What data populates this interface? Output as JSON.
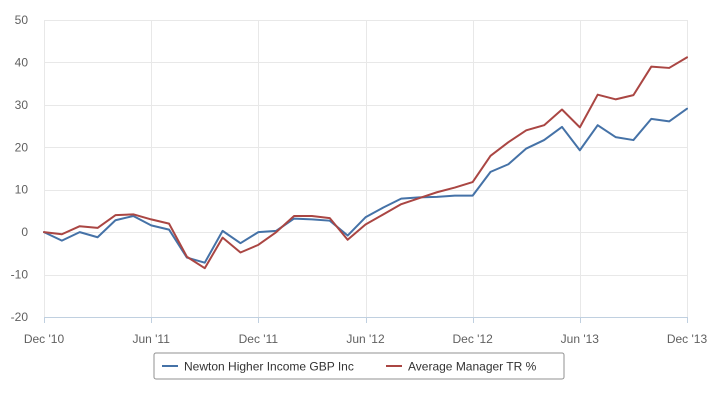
{
  "chart_data": {
    "type": "line",
    "title": "",
    "xlabel": "",
    "ylabel": "",
    "ylim": [
      -20,
      50
    ],
    "yticks": [
      -20,
      -10,
      0,
      10,
      20,
      30,
      40,
      50
    ],
    "xlim": [
      "2010-12",
      "2013-12"
    ],
    "xticks": [
      {
        "x": "2010-12",
        "label": "Dec '10"
      },
      {
        "x": "2011-06",
        "label": "Jun '11"
      },
      {
        "x": "2011-12",
        "label": "Dec '11"
      },
      {
        "x": "2012-06",
        "label": "Jun '12"
      },
      {
        "x": "2012-12",
        "label": "Dec '12"
      },
      {
        "x": "2013-06",
        "label": "Jun '13"
      },
      {
        "x": "2013-12",
        "label": "Dec '13"
      }
    ],
    "grid": true,
    "legend_position": "bottom-center",
    "x": [
      "2010-12",
      "2011-01",
      "2011-02",
      "2011-03",
      "2011-04",
      "2011-05",
      "2011-06",
      "2011-07",
      "2011-08",
      "2011-09",
      "2011-10",
      "2011-11",
      "2011-12",
      "2012-01",
      "2012-02",
      "2012-03",
      "2012-04",
      "2012-05",
      "2012-06",
      "2012-07",
      "2012-08",
      "2012-09",
      "2012-10",
      "2012-11",
      "2012-12",
      "2013-01",
      "2013-02",
      "2013-03",
      "2013-04",
      "2013-05",
      "2013-06",
      "2013-07",
      "2013-08",
      "2013-09",
      "2013-10",
      "2013-11",
      "2013-12"
    ],
    "series": [
      {
        "name": "Newton Higher Income GBP Inc",
        "color": "#4572A7",
        "values": [
          0,
          -2,
          0,
          -1.2,
          2.8,
          3.8,
          1.6,
          0.6,
          -6,
          -7.2,
          0.3,
          -2.6,
          0,
          0.3,
          3.2,
          3,
          2.7,
          -0.8,
          3.5,
          5.8,
          7.9,
          8.2,
          8.3,
          8.6,
          8.6,
          14.2,
          16,
          19.7,
          21.7,
          24.8,
          19.3,
          25.2,
          22.4,
          21.7,
          26.7,
          26.1,
          29.1
        ]
      },
      {
        "name": "Average Manager TR %",
        "color": "#AA4643",
        "values": [
          0,
          -0.5,
          1.4,
          1,
          4,
          4.2,
          3,
          2,
          -5.8,
          -8.5,
          -1.3,
          -4.8,
          -3,
          0,
          3.8,
          3.8,
          3.3,
          -1.8,
          1.8,
          4.2,
          6.6,
          8,
          9.4,
          10.5,
          11.8,
          18,
          21.2,
          24,
          25.2,
          28.9,
          24.7,
          32.4,
          31.3,
          32.3,
          39,
          38.7,
          41.2
        ]
      }
    ]
  }
}
